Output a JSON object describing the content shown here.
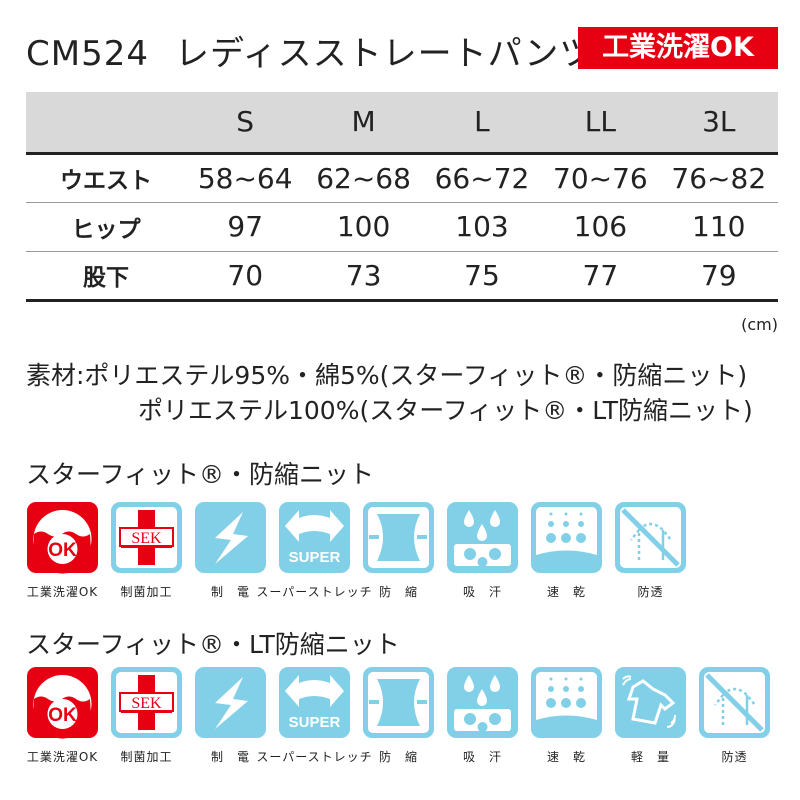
{
  "header": {
    "code": "CM524",
    "name": "レディスストレートパンツ",
    "badge": "工業洗濯OK"
  },
  "size_table": {
    "columns": [
      "S",
      "M",
      "L",
      "LL",
      "3L"
    ],
    "rows": [
      {
        "label": "ウエスト",
        "values": [
          "58~64",
          "62~68",
          "66~72",
          "70~76",
          "76~82"
        ]
      },
      {
        "label": "ヒップ",
        "values": [
          "97",
          "100",
          "103",
          "106",
          "110"
        ]
      },
      {
        "label": "股下",
        "values": [
          "70",
          "73",
          "75",
          "77",
          "79"
        ]
      }
    ],
    "unit": "(cm)"
  },
  "material": {
    "line1": "素材:ポリエステル95%・綿5%(スターフィット®・防縮ニット)",
    "line2": "ポリエステル100%(スターフィット®・LT防縮ニット)"
  },
  "colors": {
    "accent": "#e60012",
    "icon_blue": "#82d0e8"
  },
  "sections": [
    {
      "title": "スターフィット®・防縮ニット",
      "icons": [
        {
          "icon": "wash-ok",
          "label": "工業洗濯OK"
        },
        {
          "icon": "sek",
          "label": "制菌加工"
        },
        {
          "icon": "antistatic",
          "label": "制　電"
        },
        {
          "icon": "super-stretch",
          "label": "スーパーストレッチ"
        },
        {
          "icon": "shrink-proof",
          "label": "防　縮"
        },
        {
          "icon": "sweat-absorb",
          "label": "吸　汗"
        },
        {
          "icon": "quick-dry",
          "label": "速　乾"
        },
        {
          "icon": "see-through-proof",
          "label": "防透"
        }
      ]
    },
    {
      "title": "スターフィット®・LT防縮ニット",
      "icons": [
        {
          "icon": "wash-ok",
          "label": "工業洗濯OK"
        },
        {
          "icon": "sek",
          "label": "制菌加工"
        },
        {
          "icon": "antistatic",
          "label": "制　電"
        },
        {
          "icon": "super-stretch",
          "label": "スーパーストレッチ"
        },
        {
          "icon": "shrink-proof",
          "label": "防　縮"
        },
        {
          "icon": "sweat-absorb",
          "label": "吸　汗"
        },
        {
          "icon": "quick-dry",
          "label": "速　乾"
        },
        {
          "icon": "lightweight",
          "label": "軽　量"
        },
        {
          "icon": "see-through-proof",
          "label": "防透"
        }
      ]
    }
  ],
  "icon_text": {
    "ok": "OK",
    "sek": "SEK",
    "super": "SUPER"
  }
}
